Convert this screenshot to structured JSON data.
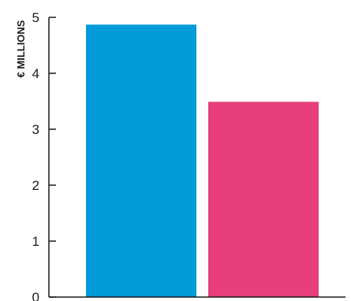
{
  "chart_data": {
    "type": "bar",
    "ylabel": "€ MILLIONS",
    "xlabel": "",
    "categories": [
      "",
      ""
    ],
    "values": [
      4.87,
      3.49
    ],
    "colors": [
      "#009bd8",
      "#e63f79"
    ],
    "ylim": [
      0,
      5
    ],
    "yticks": [
      "0",
      "1",
      "2",
      "3",
      "4",
      "5"
    ],
    "grid": false
  }
}
